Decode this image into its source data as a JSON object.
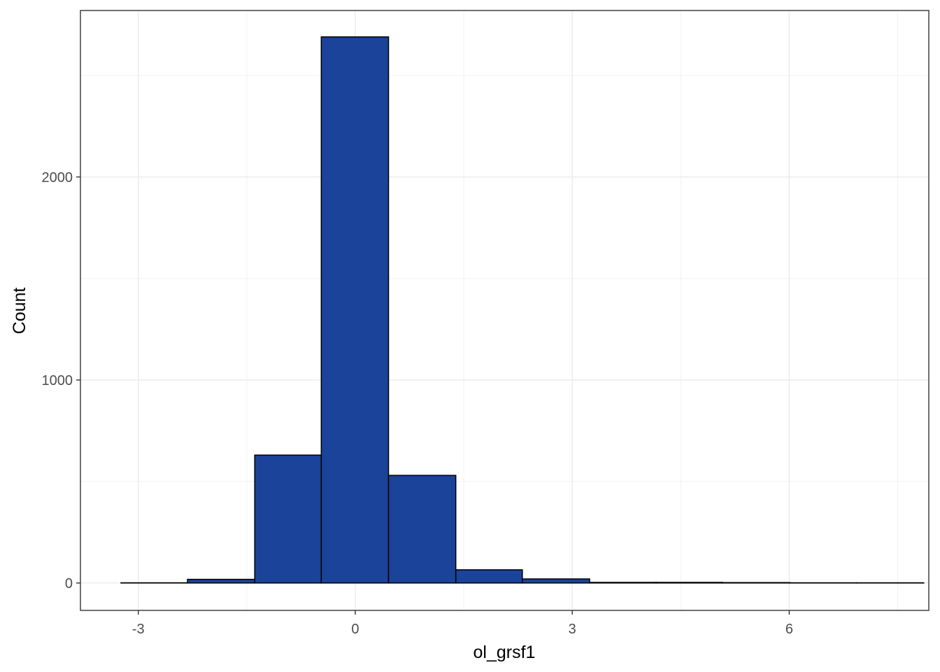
{
  "chart_data": {
    "type": "bar",
    "subtype": "histogram",
    "title": "",
    "xlabel": "ol_grsf1",
    "ylabel": "Count",
    "xlim": [
      -3.8,
      7.93
    ],
    "ylim": [
      -135,
      2820
    ],
    "x_ticks": [
      -3,
      0,
      3,
      6
    ],
    "x_tick_labels": [
      "-3",
      "0",
      "3",
      "6"
    ],
    "y_ticks": [
      0,
      1000,
      2000
    ],
    "y_tick_labels": [
      "0",
      "1000",
      "2000"
    ],
    "grid": true,
    "legend": "none",
    "bar_fill": "#1a4399",
    "bar_outline": "#000000",
    "bins": [
      {
        "x0": -3.24,
        "x1": -2.32,
        "count": 1
      },
      {
        "x0": -2.32,
        "x1": -1.39,
        "count": 18
      },
      {
        "x0": -1.39,
        "x1": -0.47,
        "count": 630
      },
      {
        "x0": -0.47,
        "x1": 0.46,
        "count": 2690
      },
      {
        "x0": 0.46,
        "x1": 1.39,
        "count": 530
      },
      {
        "x0": 1.39,
        "x1": 2.31,
        "count": 65
      },
      {
        "x0": 2.31,
        "x1": 3.24,
        "count": 20
      },
      {
        "x0": 3.24,
        "x1": 4.16,
        "count": 3
      },
      {
        "x0": 4.16,
        "x1": 5.08,
        "count": 3
      },
      {
        "x0": 5.08,
        "x1": 6.01,
        "count": 2
      },
      {
        "x0": 6.01,
        "x1": 6.93,
        "count": 1
      },
      {
        "x0": 6.93,
        "x1": 7.86,
        "count": 1
      }
    ]
  }
}
